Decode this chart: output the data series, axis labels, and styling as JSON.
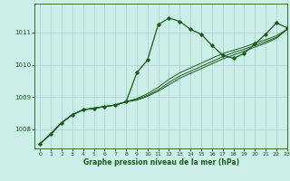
{
  "title": "Graphe pression niveau de la mer (hPa)",
  "bg_color": "#cceee8",
  "plot_bg_color": "#cceee8",
  "grid_color": "#aacccc",
  "line_color": "#1a5c1a",
  "xlim": [
    -0.5,
    23
  ],
  "ylim": [
    1007.4,
    1011.9
  ],
  "yticks": [
    1008,
    1009,
    1010,
    1011
  ],
  "xticks": [
    0,
    1,
    2,
    3,
    4,
    5,
    6,
    7,
    8,
    9,
    10,
    11,
    12,
    13,
    14,
    15,
    16,
    17,
    18,
    19,
    20,
    21,
    22,
    23
  ],
  "series_main": [
    1007.55,
    1007.85,
    1008.2,
    1008.45,
    1008.6,
    1008.65,
    1008.7,
    1008.75,
    1008.85,
    1009.75,
    1010.15,
    1011.25,
    1011.45,
    1011.35,
    1011.1,
    1010.95,
    1010.6,
    1010.3,
    1010.2,
    1010.35,
    1010.65,
    1010.95,
    1011.3,
    1011.15
  ],
  "series_b": [
    1007.55,
    1007.85,
    1008.2,
    1008.45,
    1008.6,
    1008.65,
    1008.7,
    1008.75,
    1008.85,
    1008.95,
    1009.1,
    1009.3,
    1009.55,
    1009.75,
    1009.9,
    1010.05,
    1010.2,
    1010.35,
    1010.45,
    1010.55,
    1010.67,
    1010.78,
    1010.9,
    1011.1
  ],
  "series_c": [
    1007.55,
    1007.85,
    1008.2,
    1008.45,
    1008.6,
    1008.65,
    1008.7,
    1008.75,
    1008.85,
    1008.92,
    1009.05,
    1009.22,
    1009.45,
    1009.65,
    1009.8,
    1009.95,
    1010.1,
    1010.25,
    1010.38,
    1010.48,
    1010.6,
    1010.72,
    1010.85,
    1011.1
  ],
  "series_d": [
    1007.55,
    1007.85,
    1008.2,
    1008.45,
    1008.6,
    1008.65,
    1008.7,
    1008.75,
    1008.85,
    1008.9,
    1009.02,
    1009.18,
    1009.38,
    1009.58,
    1009.73,
    1009.88,
    1010.03,
    1010.18,
    1010.3,
    1010.42,
    1010.55,
    1010.67,
    1010.82,
    1011.1
  ]
}
